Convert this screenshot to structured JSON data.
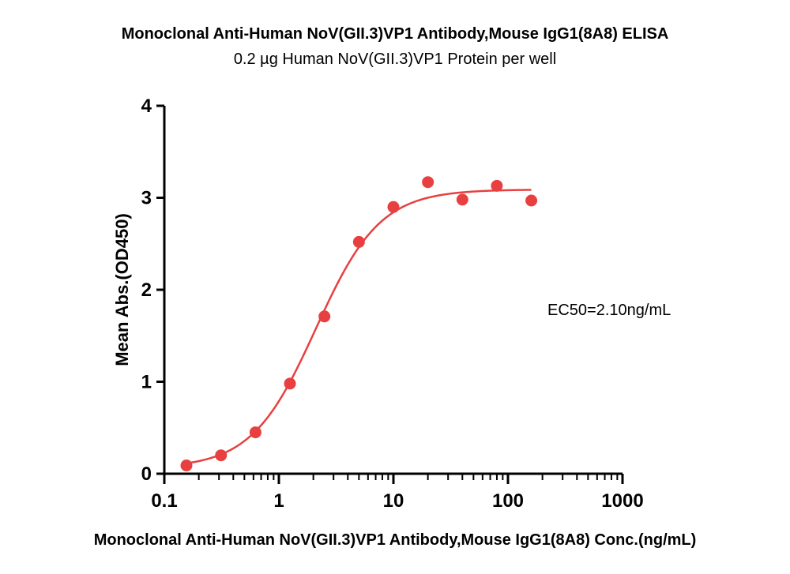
{
  "chart_data": {
    "type": "scatter",
    "title": "Monoclonal Anti-Human NoV(GII.3)VP1 Antibody,Mouse IgG1(8A8) ELISA",
    "subtitle": "0.2 µg  Human NoV(GII.3)VP1 Protein per well",
    "xlabel": "Monoclonal Anti-Human NoV(GII.3)VP1 Antibody,Mouse IgG1(8A8) Conc.(ng/mL)",
    "ylabel": "Mean Abs.(OD450)",
    "x_scale": "log",
    "xlim": [
      0.1,
      1000
    ],
    "ylim": [
      0,
      4
    ],
    "x_ticks": [
      "0.1",
      "1",
      "10",
      "100",
      "1000"
    ],
    "y_ticks": [
      "0",
      "1",
      "2",
      "3",
      "4"
    ],
    "annotation": "EC50=2.10ng/mL",
    "color": "#e84040",
    "series": [
      {
        "x": [
          0.156,
          0.3125,
          0.625,
          1.25,
          2.5,
          5,
          10,
          20,
          40,
          80,
          160
        ],
        "y": [
          0.09,
          0.2,
          0.45,
          0.98,
          1.71,
          2.52,
          2.9,
          3.17,
          2.98,
          3.13,
          2.97
        ]
      }
    ],
    "fit": {
      "type": "4PL",
      "bottom": 0.06,
      "top": 3.09,
      "ec50": 2.1,
      "hill": 1.55,
      "x_range": [
        0.156,
        160
      ]
    }
  }
}
